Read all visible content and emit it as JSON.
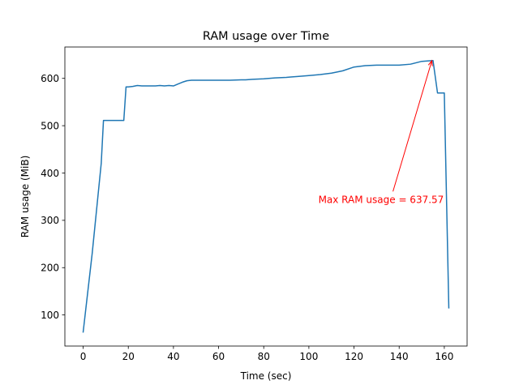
{
  "chart_data": {
    "type": "line",
    "title": "RAM usage over Time",
    "xlabel": "Time (sec)",
    "ylabel": "RAM usage (MiB)",
    "xlim": [
      -8.1,
      170.1
    ],
    "ylim": [
      34.3,
      666.3
    ],
    "xticks": [
      0,
      20,
      40,
      60,
      80,
      100,
      120,
      140,
      160
    ],
    "yticks": [
      100,
      200,
      300,
      400,
      500,
      600
    ],
    "grid": false,
    "series": [
      {
        "color": "#1f77b4",
        "x": [
          0,
          4,
          8,
          9,
          10,
          12,
          14,
          16,
          18,
          19,
          20,
          22,
          24,
          26,
          28,
          30,
          32,
          34,
          36,
          38,
          40,
          42,
          44,
          46,
          48,
          50,
          55,
          60,
          65,
          70,
          72,
          75,
          80,
          85,
          90,
          92,
          95,
          100,
          105,
          110,
          112,
          115,
          120,
          125,
          130,
          135,
          140,
          145,
          150,
          153,
          155,
          157,
          160,
          162
        ],
        "y": [
          64,
          230,
          420,
          511,
          511,
          511,
          511,
          511,
          511,
          582,
          582,
          583,
          585,
          584,
          584,
          584,
          584,
          585,
          584,
          585,
          584,
          588,
          592,
          595,
          596,
          596,
          596,
          596,
          596,
          597,
          597,
          598,
          599,
          601,
          602,
          603,
          604,
          606,
          608,
          611,
          613,
          616,
          624,
          627,
          628,
          628,
          628,
          630,
          636,
          637,
          637.57,
          569,
          569,
          115
        ]
      }
    ],
    "annotations": [
      {
        "text": "Max RAM usage = 637.57",
        "color": "#ff0000",
        "text_x": 104.2,
        "text_y": 337,
        "point_x": 154.5,
        "point_y": 637.57
      }
    ]
  }
}
